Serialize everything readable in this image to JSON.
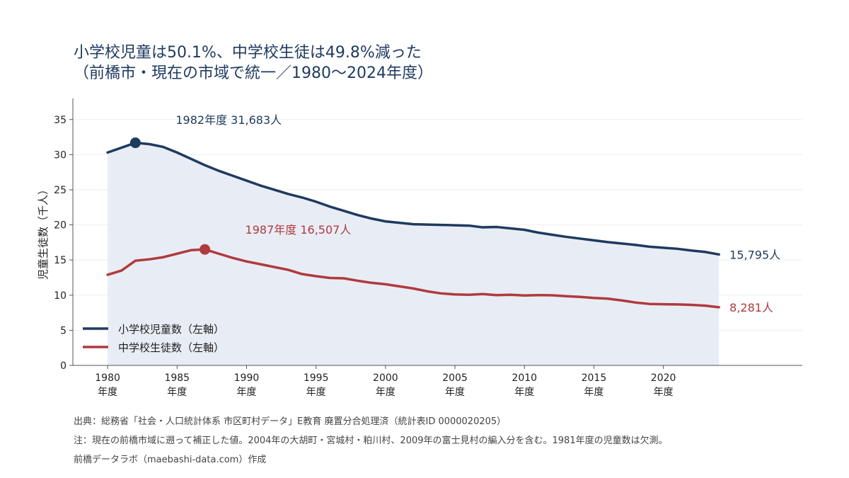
{
  "title": {
    "line1": "小学校児童は50.1%、中学校生徒は49.8%減った",
    "line2": "（前橋市・現在の市域で統一／1980〜2024年度）"
  },
  "colors": {
    "primary": "#1f3a5f",
    "secondary": "#b03a3e",
    "area": "#e8edf5",
    "axis": "#555555",
    "grid": "#eeeeee"
  },
  "chart_data": {
    "type": "line",
    "ylabel": "児童生徒数（千人）",
    "ylim": [
      0,
      38
    ],
    "yticks": [
      0,
      5,
      10,
      15,
      20,
      25,
      30,
      35
    ],
    "xlim": [
      1977.5,
      2030
    ],
    "xticks": [
      {
        "value": 1980,
        "label": "1980",
        "sublabel": "年度"
      },
      {
        "value": 1985,
        "label": "1985",
        "sublabel": "年度"
      },
      {
        "value": 1990,
        "label": "1990",
        "sublabel": "年度"
      },
      {
        "value": 1995,
        "label": "1995",
        "sublabel": "年度"
      },
      {
        "value": 2000,
        "label": "2000",
        "sublabel": "年度"
      },
      {
        "value": 2005,
        "label": "2005",
        "sublabel": "年度"
      },
      {
        "value": 2010,
        "label": "2010",
        "sublabel": "年度"
      },
      {
        "value": 2015,
        "label": "2015",
        "sublabel": "年度"
      },
      {
        "value": 2020,
        "label": "2020",
        "sublabel": "年度"
      }
    ],
    "grid": true,
    "legend_position": "bottom-left",
    "series": [
      {
        "name": "小学校児童数（左軸）",
        "color": "#1f3a5f",
        "fill_area": true,
        "points": [
          [
            1980,
            30.3
          ],
          [
            1982,
            31.683
          ],
          [
            1983,
            31.5
          ],
          [
            1984,
            31.1
          ],
          [
            1985,
            30.3
          ],
          [
            1986,
            29.4
          ],
          [
            1987,
            28.5
          ],
          [
            1988,
            27.7
          ],
          [
            1989,
            27.0
          ],
          [
            1990,
            26.3
          ],
          [
            1991,
            25.6
          ],
          [
            1992,
            25.0
          ],
          [
            1993,
            24.4
          ],
          [
            1994,
            23.9
          ],
          [
            1995,
            23.3
          ],
          [
            1996,
            22.6
          ],
          [
            1997,
            22.0
          ],
          [
            1998,
            21.4
          ],
          [
            1999,
            20.9
          ],
          [
            2000,
            20.5
          ],
          [
            2001,
            20.3
          ],
          [
            2002,
            20.1
          ],
          [
            2003,
            20.05
          ],
          [
            2004,
            20.0
          ],
          [
            2005,
            19.95
          ],
          [
            2006,
            19.9
          ],
          [
            2007,
            19.65
          ],
          [
            2008,
            19.7
          ],
          [
            2009,
            19.5
          ],
          [
            2010,
            19.3
          ],
          [
            2011,
            18.9
          ],
          [
            2012,
            18.6
          ],
          [
            2013,
            18.3
          ],
          [
            2014,
            18.05
          ],
          [
            2015,
            17.8
          ],
          [
            2016,
            17.55
          ],
          [
            2017,
            17.35
          ],
          [
            2018,
            17.15
          ],
          [
            2019,
            16.9
          ],
          [
            2020,
            16.75
          ],
          [
            2021,
            16.6
          ],
          [
            2022,
            16.35
          ],
          [
            2023,
            16.15
          ],
          [
            2024,
            15.795
          ]
        ],
        "peak": {
          "x": 1982,
          "y": 31.683,
          "label": "1982年度 31,683人"
        },
        "end_label": "15,795人"
      },
      {
        "name": "中学校生徒数（左軸）",
        "color": "#b03a3e",
        "fill_area": false,
        "points": [
          [
            1980,
            12.9
          ],
          [
            1981,
            13.5
          ],
          [
            1982,
            14.9
          ],
          [
            1983,
            15.1
          ],
          [
            1984,
            15.4
          ],
          [
            1985,
            15.9
          ],
          [
            1986,
            16.4
          ],
          [
            1987,
            16.507
          ],
          [
            1988,
            15.9
          ],
          [
            1989,
            15.3
          ],
          [
            1990,
            14.8
          ],
          [
            1991,
            14.4
          ],
          [
            1992,
            14.0
          ],
          [
            1993,
            13.6
          ],
          [
            1994,
            13.0
          ],
          [
            1995,
            12.7
          ],
          [
            1996,
            12.45
          ],
          [
            1997,
            12.4
          ],
          [
            1998,
            12.05
          ],
          [
            1999,
            11.75
          ],
          [
            2000,
            11.55
          ],
          [
            2001,
            11.25
          ],
          [
            2002,
            10.95
          ],
          [
            2003,
            10.55
          ],
          [
            2004,
            10.25
          ],
          [
            2005,
            10.1
          ],
          [
            2006,
            10.05
          ],
          [
            2007,
            10.15
          ],
          [
            2008,
            10.0
          ],
          [
            2009,
            10.05
          ],
          [
            2010,
            9.95
          ],
          [
            2011,
            10.0
          ],
          [
            2012,
            9.98
          ],
          [
            2013,
            9.85
          ],
          [
            2014,
            9.75
          ],
          [
            2015,
            9.6
          ],
          [
            2016,
            9.5
          ],
          [
            2017,
            9.25
          ],
          [
            2018,
            8.95
          ],
          [
            2019,
            8.75
          ],
          [
            2020,
            8.7
          ],
          [
            2021,
            8.68
          ],
          [
            2022,
            8.62
          ],
          [
            2023,
            8.5
          ],
          [
            2024,
            8.281
          ]
        ],
        "peak": {
          "x": 1987,
          "y": 16.507,
          "label": "1987年度 16,507人"
        },
        "end_label": "8,281人"
      }
    ]
  },
  "footer": {
    "source": "出典：総務省「社会・人口統計体系 市区町村データ」E教育 廃置分合処理済（統計表ID 0000020205）",
    "note": "注：現在の前橋市域に遡って補正した値。2004年の大胡町・宮城村・粕川村、2009年の富士見村の編入分を含む。1981年度の児童数は欠測。",
    "credit": "前橋データラボ（maebashi-data.com）作成"
  }
}
